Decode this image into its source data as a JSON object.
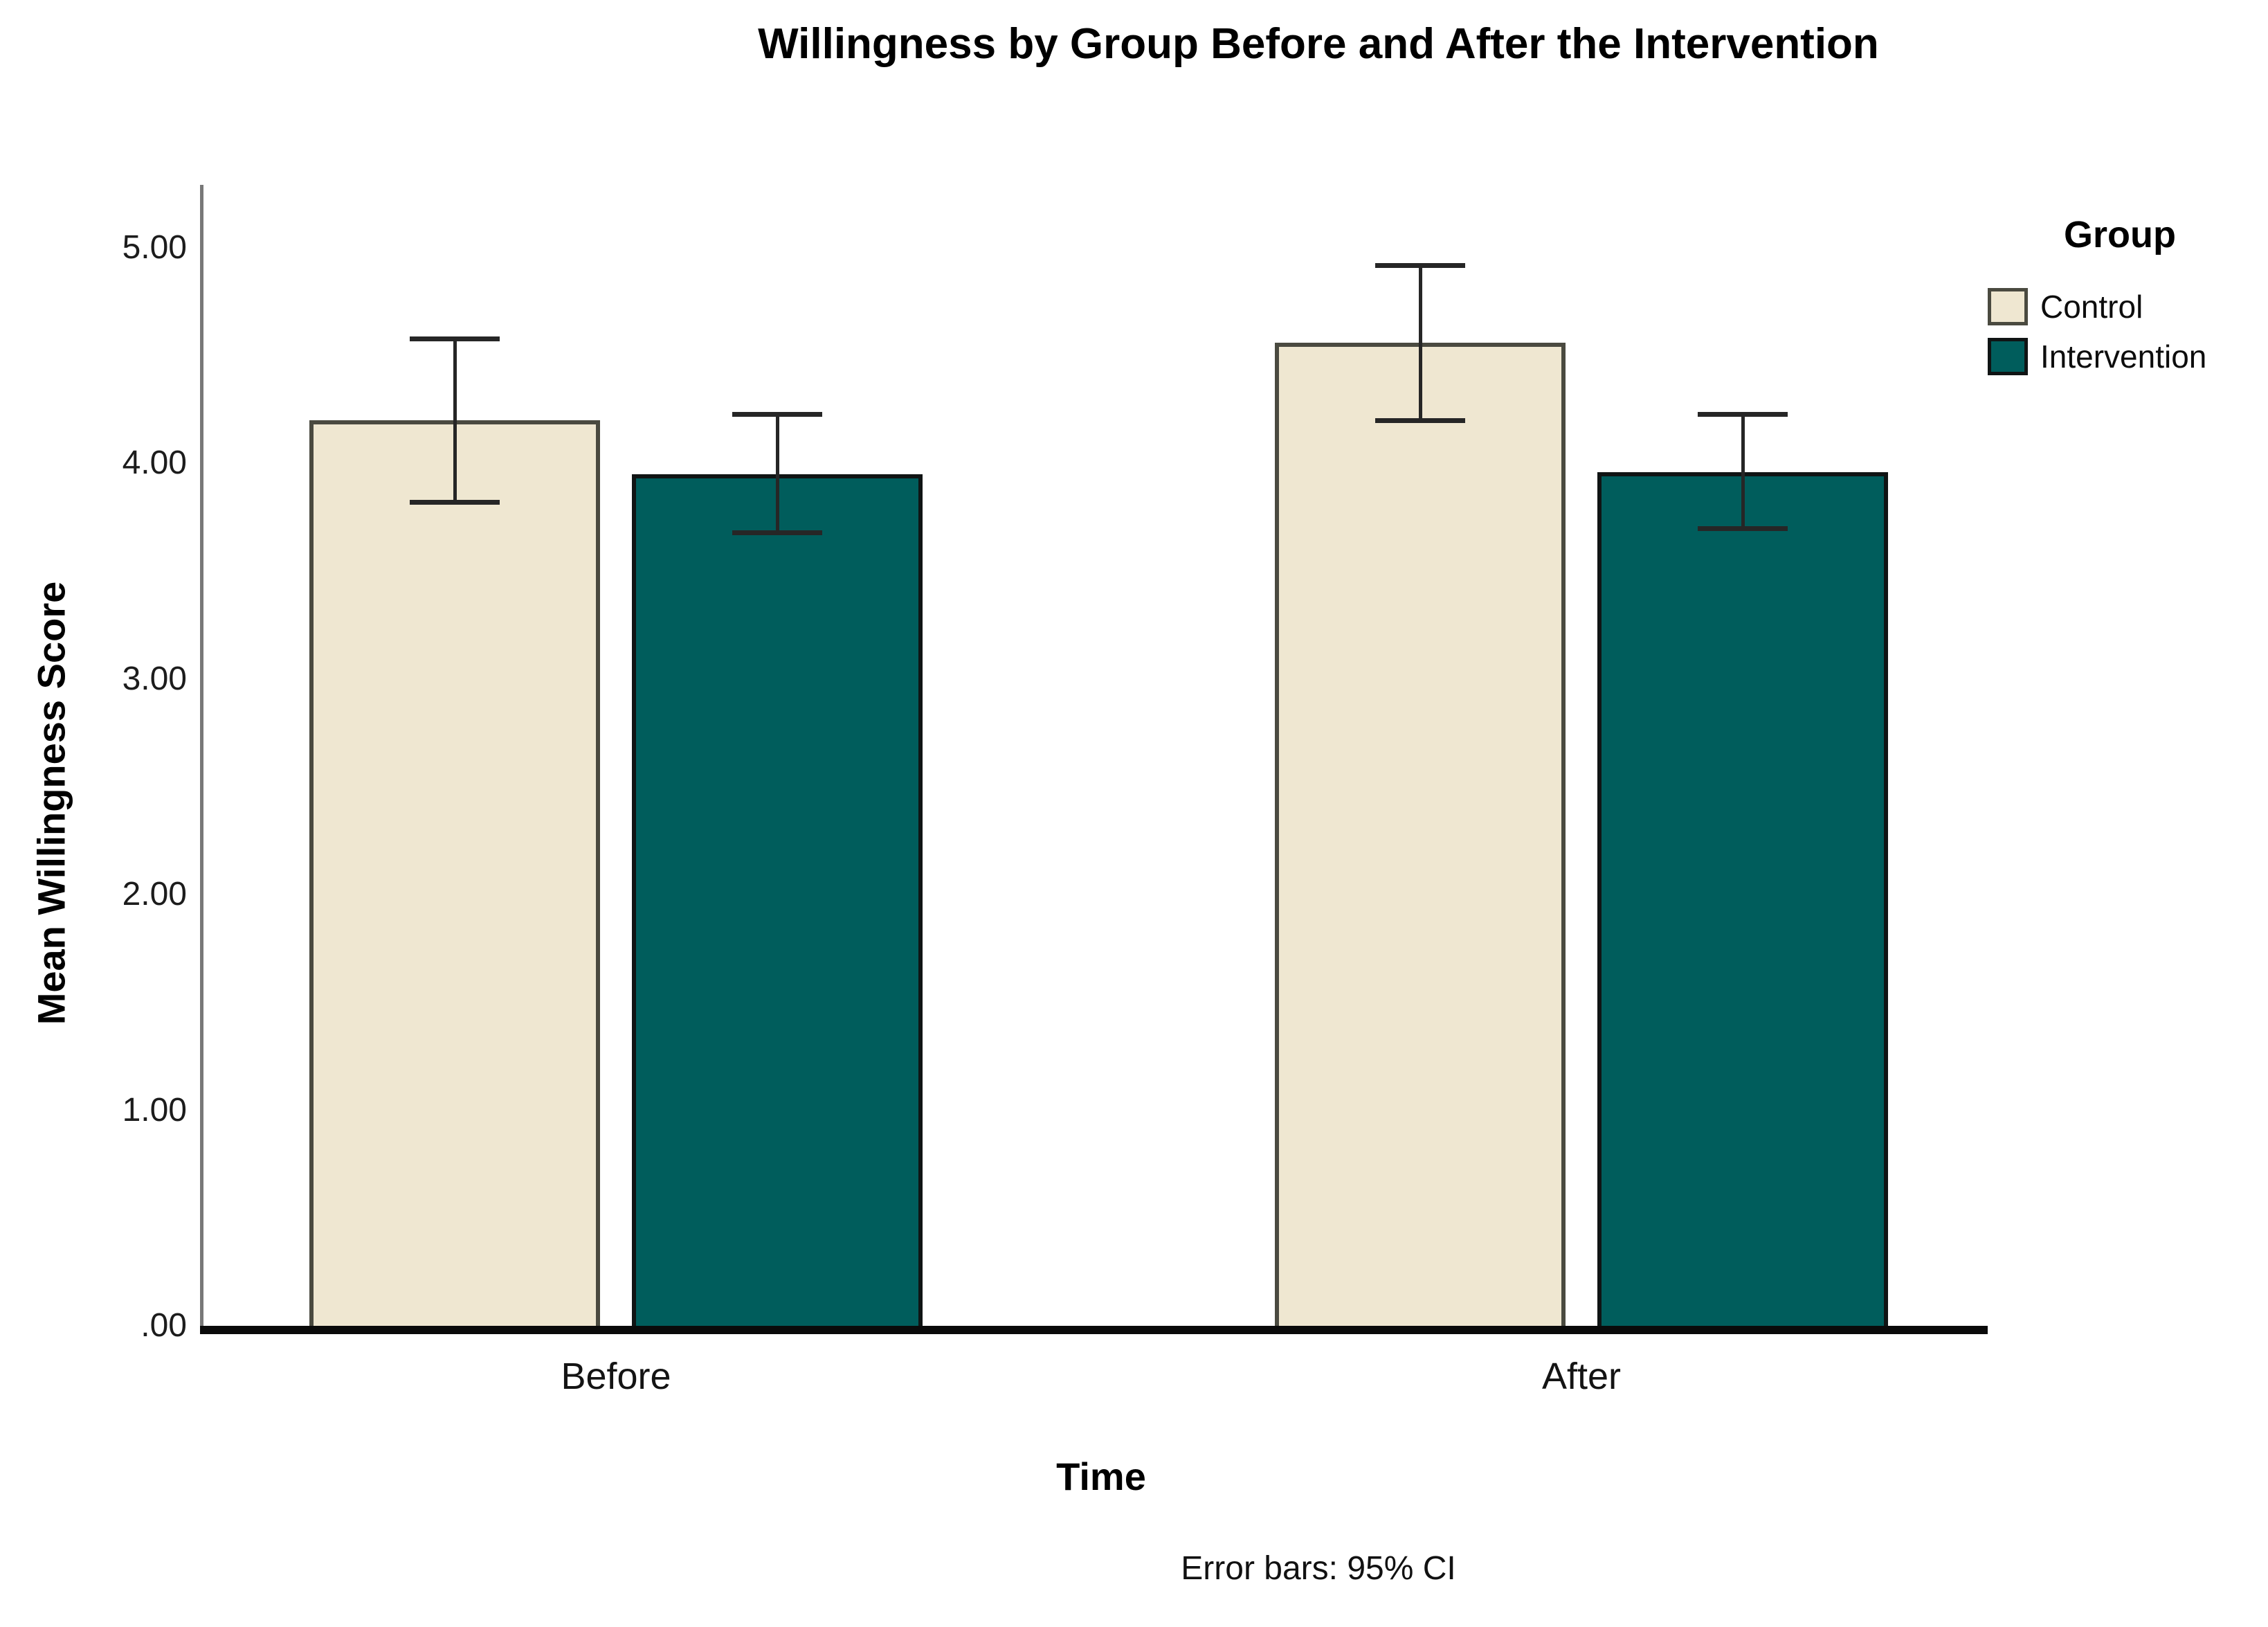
{
  "figure": {
    "title": "Willingness by Group Before and After the Intervention",
    "footnote": "Error bars: 95% CI"
  },
  "axes": {
    "y_title": "Mean Willingness Score",
    "x_title": "Time",
    "y_ticks": [
      {
        "label": "5.00",
        "value": 5
      },
      {
        "label": "4.00",
        "value": 4
      },
      {
        "label": "3.00",
        "value": 3
      },
      {
        "label": "2.00",
        "value": 2
      },
      {
        "label": "1.00",
        "value": 1
      },
      {
        "label": ".00",
        "value": 0
      }
    ],
    "x_ticks": [
      "Before",
      "After"
    ]
  },
  "legend": {
    "title": "Group",
    "items": [
      {
        "label": "Control",
        "color": "#efe7d1",
        "border": "#4a4a40"
      },
      {
        "label": "Intervention",
        "color": "#005d5c",
        "border": "#101414"
      }
    ]
  },
  "colors": {
    "axis_line": "#787878",
    "baseline": "#0a0a0a",
    "error_bar": "#262626",
    "background": "#ffffff"
  },
  "chart_data": {
    "type": "bar",
    "title": "Willingness by Group Before and After the Intervention",
    "xlabel": "Time",
    "ylabel": "Mean Willingness Score",
    "categories": [
      "Before",
      "After"
    ],
    "series": [
      {
        "name": "Control",
        "color": "#efe7d1",
        "border": "#4a4a40",
        "values": [
          4.2,
          4.56
        ],
        "ci_low": [
          3.82,
          4.2
        ],
        "ci_high": [
          4.58,
          4.92
        ]
      },
      {
        "name": "Intervention",
        "color": "#005d5c",
        "border": "#101414",
        "values": [
          3.95,
          3.96
        ],
        "ci_low": [
          3.68,
          3.7
        ],
        "ci_high": [
          4.23,
          4.23
        ]
      }
    ],
    "ylim": [
      0,
      5.3
    ],
    "yticks": [
      0,
      1,
      2,
      3,
      4,
      5
    ],
    "grid": false,
    "error_bars": "95% CI",
    "legend_position": "right",
    "legend_title": "Group"
  }
}
